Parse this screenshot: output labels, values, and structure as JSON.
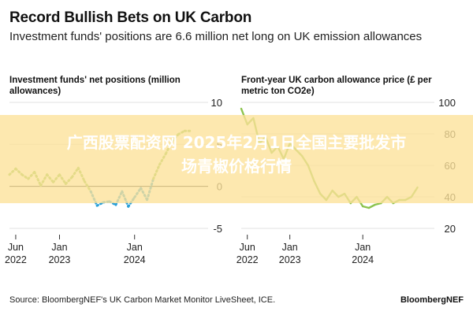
{
  "header": {
    "title": "Record Bullish Bets on UK Carbon",
    "subtitle": "Investment funds' positions are 6.6 million net long on UK emission allowances"
  },
  "footer": {
    "source": "Source: BloombergNEF's UK Carbon Market Monitor LiveSheet, ICE.",
    "brand": "BloombergNEF"
  },
  "overlay": {
    "watermark_line1": "广西股票配资网 2025年2月1日全国主要批发市",
    "watermark_line2": "场青椒价格行情"
  },
  "colors": {
    "positive": "#8cc34e",
    "negative": "#2aa0d8",
    "zero_line": "#222222",
    "grid": "#d8d8d8"
  },
  "chart_data": [
    {
      "type": "line",
      "title": "Investment funds' net positions (million allowances)",
      "xlabel": "",
      "ylabel": "",
      "ylim": [
        -5,
        10
      ],
      "yticks": [
        10,
        5,
        0,
        -5
      ],
      "ytick_labels": [
        "10",
        "5",
        "0",
        "-5"
      ],
      "xticks": [
        "2022-06",
        "2023-01",
        "2024-01"
      ],
      "xtick_labels": [
        [
          "Jun",
          "2022"
        ],
        [
          "Jan",
          "2023"
        ],
        [
          "Jan",
          "2024"
        ]
      ],
      "x_range": [
        "2022-05",
        "2024-12"
      ],
      "line_style": "dotted",
      "color_rule": "above zero green, below zero blue",
      "series": [
        {
          "x": [
            "2022-05",
            "2022-06",
            "2022-07",
            "2022-08",
            "2022-09",
            "2022-10",
            "2022-11",
            "2022-12",
            "2023-01",
            "2023-02",
            "2023-03",
            "2023-04",
            "2023-05",
            "2023-06",
            "2023-07",
            "2023-08",
            "2023-09",
            "2023-10",
            "2023-11",
            "2023-12",
            "2024-01",
            "2024-02",
            "2024-03",
            "2024-04",
            "2024-05",
            "2024-06",
            "2024-07",
            "2024-08",
            "2024-09",
            "2024-10"
          ],
          "values": [
            1.4,
            2.1,
            1.4,
            0.9,
            1.7,
            0.1,
            1.4,
            0.5,
            1.4,
            0.3,
            1.1,
            2.2,
            0.6,
            -0.6,
            -2.3,
            -1.9,
            -1.8,
            -2.2,
            -0.6,
            -2.4,
            -1.3,
            -0.2,
            -1.6,
            0.9,
            2.6,
            3.9,
            5.4,
            6.2,
            6.6,
            6.6
          ]
        }
      ]
    },
    {
      "type": "line",
      "title": "Front-year UK carbon allowance price (£ per metric ton CO2e)",
      "xlabel": "",
      "ylabel": "",
      "ylim": [
        20,
        100
      ],
      "yticks": [
        100,
        80,
        60,
        40,
        20
      ],
      "ytick_labels": [
        "100",
        "80",
        "60",
        "40",
        "20"
      ],
      "xticks": [
        "2022-06",
        "2023-01",
        "2024-01"
      ],
      "xtick_labels": [
        [
          "Jun",
          "2022"
        ],
        [
          "Jan",
          "2023"
        ],
        [
          "Jan",
          "2024"
        ]
      ],
      "x_range": [
        "2022-05",
        "2024-12"
      ],
      "line_style": "solid",
      "color_rule": "above zero green, below zero blue",
      "series": [
        {
          "x": [
            "2022-05",
            "2022-06",
            "2022-07",
            "2022-08",
            "2022-09",
            "2022-10",
            "2022-11",
            "2022-12",
            "2023-01",
            "2023-02",
            "2023-03",
            "2023-04",
            "2023-05",
            "2023-06",
            "2023-07",
            "2023-08",
            "2023-09",
            "2023-10",
            "2023-11",
            "2023-12",
            "2024-01",
            "2024-02",
            "2024-03",
            "2024-04",
            "2024-05",
            "2024-06",
            "2024-07",
            "2024-08",
            "2024-09",
            "2024-10"
          ],
          "values": [
            96,
            86,
            90,
            74,
            78,
            68,
            72,
            64,
            74,
            70,
            66,
            60,
            50,
            42,
            38,
            44,
            40,
            42,
            36,
            40,
            34,
            33,
            35,
            36,
            40,
            36,
            38,
            38,
            40,
            46
          ]
        }
      ]
    }
  ]
}
